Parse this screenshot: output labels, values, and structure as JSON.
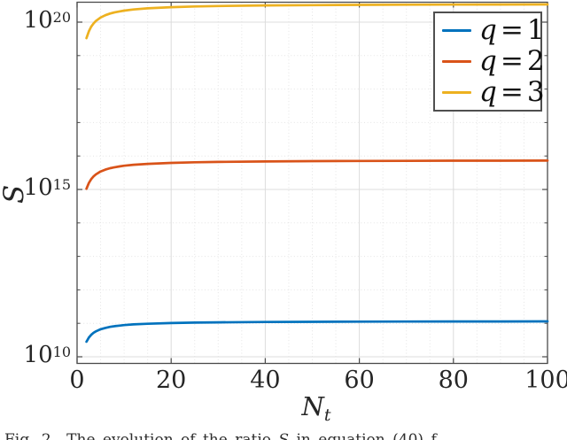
{
  "figure": {
    "background": "#ffffff",
    "caption_label": "Fig. 2.",
    "caption_pre": "The evolution of the ratio ",
    "caption_var": "S",
    "caption_post": " in equation (40) f"
  },
  "chart_data": {
    "type": "line",
    "title": "",
    "xlabel": {
      "base": "N",
      "subscript": "t"
    },
    "ylabel": "S",
    "x_axis": {
      "min": 0,
      "max": 100,
      "major_ticks": [
        0,
        20,
        40,
        60,
        80,
        100
      ],
      "minor_tick_step": 5
    },
    "y_axis": {
      "scale": "log10",
      "log10_min": 9.8,
      "log10_max": 20.6,
      "major_tick_exponents": [
        10,
        15,
        20
      ],
      "minor_tick_exponents": [
        11,
        12,
        13,
        14,
        16,
        17,
        18,
        19
      ],
      "tick_label_base": "10"
    },
    "grid": {
      "major": true,
      "minor": true
    },
    "colors": {
      "axes": "#4a4a4a",
      "grid_major": "#dcdcdc",
      "grid_minor": "#e4e4e4",
      "tick_text": "#262626"
    },
    "legend": {
      "position": "northeast",
      "entries": [
        {
          "label": "q = 1",
          "variable": "q",
          "eq": "=",
          "value": "1",
          "color": "#0072BD"
        },
        {
          "label": "q = 2",
          "variable": "q",
          "eq": "=",
          "value": "2",
          "color": "#D95319"
        },
        {
          "label": "q = 3",
          "variable": "q",
          "eq": "=",
          "value": "3",
          "color": "#EDB120"
        }
      ]
    },
    "x": [
      2,
      2.5,
      3,
      3.5,
      4,
      5,
      6,
      7,
      8,
      9,
      10,
      12,
      15,
      20,
      25,
      30,
      40,
      50,
      60,
      70,
      80,
      90,
      100
    ],
    "series": [
      {
        "name": "q = 1",
        "color": "#0072BD",
        "log10_S": [
          10.45,
          10.574,
          10.657,
          10.716,
          10.76,
          10.822,
          10.863,
          10.893,
          10.915,
          10.932,
          10.946,
          10.967,
          10.987,
          11.008,
          11.02,
          11.029,
          11.039,
          11.045,
          11.049,
          11.052,
          11.055,
          11.056,
          11.058
        ]
      },
      {
        "name": "q = 2",
        "color": "#D95319",
        "log10_S": [
          15.02,
          15.192,
          15.307,
          15.389,
          15.45,
          15.536,
          15.593,
          15.634,
          15.665,
          15.689,
          15.708,
          15.737,
          15.765,
          15.794,
          15.811,
          15.823,
          15.837,
          15.846,
          15.851,
          15.855,
          15.859,
          15.861,
          15.863
        ]
      },
      {
        "name": "q = 3",
        "color": "#EDB120",
        "log10_S": [
          19.52,
          19.726,
          19.863,
          19.961,
          20.035,
          20.138,
          20.207,
          20.256,
          20.293,
          20.321,
          20.344,
          20.378,
          20.413,
          20.447,
          20.468,
          20.481,
          20.499,
          20.509,
          20.516,
          20.521,
          20.524,
          20.527,
          20.529
        ]
      }
    ]
  }
}
